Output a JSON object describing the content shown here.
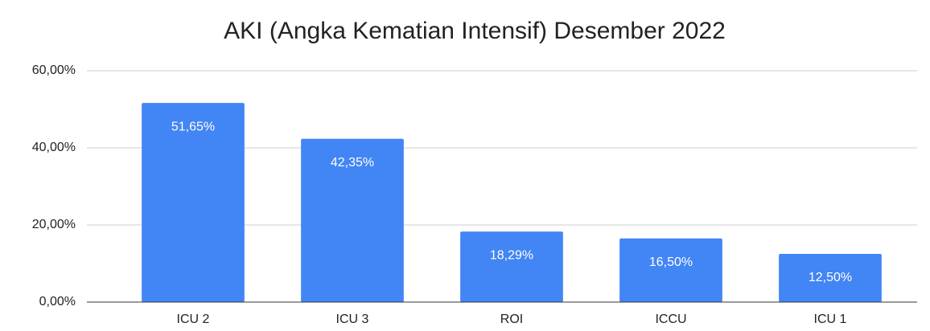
{
  "chart_data": {
    "type": "bar",
    "title": "AKI (Angka Kematian Intensif) Desember 2022",
    "categories": [
      "ICU 2",
      "ICU 3",
      "ROI",
      "ICCU",
      "ICU 1"
    ],
    "values": [
      51.65,
      42.35,
      18.29,
      16.5,
      12.5
    ],
    "value_labels": [
      "51,65%",
      "42,35%",
      "18,29%",
      "16,50%",
      "12,50%"
    ],
    "color": "#4285f4",
    "ylim": [
      0,
      60
    ],
    "yticks": [
      {
        "value": 0,
        "label": "0,00%"
      },
      {
        "value": 20,
        "label": "20,00%"
      },
      {
        "value": 40,
        "label": "40,00%"
      },
      {
        "value": 60,
        "label": "60,00%"
      }
    ],
    "grid": true
  }
}
